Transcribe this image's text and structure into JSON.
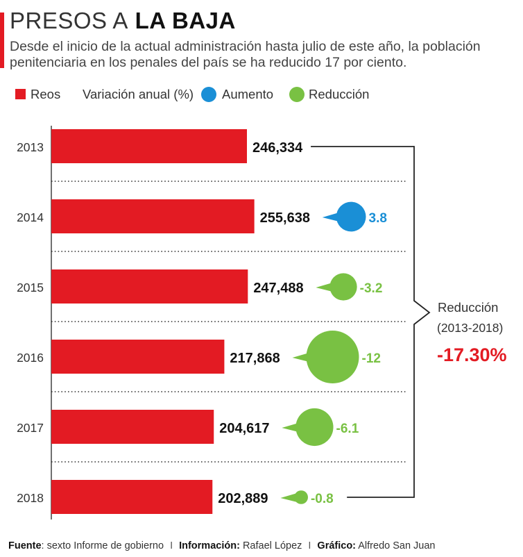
{
  "header": {
    "title_light": "PRESOS A",
    "title_bold": "LA BAJA",
    "subtitle": "Desde el inicio de la actual administración hasta julio de este año, la población penitenciaria en los penales del país se ha reducido 17 por ciento."
  },
  "legend": {
    "reos": "Reos",
    "variacion": "Variación anual (%)",
    "aumento": "Aumento",
    "reduccion": "Reducción"
  },
  "colors": {
    "bar": "#e31b23",
    "aumento": "#1a8fd6",
    "reduccion": "#79c143",
    "reduction_total": "#e31b23"
  },
  "chart_data": {
    "type": "bar",
    "orientation": "horizontal",
    "categories": [
      "2013",
      "2014",
      "2015",
      "2016",
      "2017",
      "2018"
    ],
    "series": [
      {
        "name": "Reos",
        "values": [
          246334,
          255638,
          247488,
          217868,
          204617,
          202889
        ]
      }
    ],
    "value_labels": [
      "246,334",
      "255,638",
      "247,488",
      "217,868",
      "204,617",
      "202,889"
    ],
    "annual_change": [
      {
        "year": "2014",
        "value": 3.8,
        "label": "3.8",
        "kind": "aumento"
      },
      {
        "year": "2015",
        "value": -3.2,
        "label": "-3.2",
        "kind": "reduccion"
      },
      {
        "year": "2016",
        "value": -12,
        "label": "-12",
        "kind": "reduccion"
      },
      {
        "year": "2017",
        "value": -6.1,
        "label": "-6.1",
        "kind": "reduccion"
      },
      {
        "year": "2018",
        "value": -0.8,
        "label": "-0.8",
        "kind": "reduccion"
      }
    ],
    "reduction_summary": {
      "label": "Reducción",
      "period": "(2013-2018)",
      "value": "-17.30%"
    }
  },
  "footer": {
    "fuente_label": "Fuente",
    "fuente_text": ": sexto Informe de gobierno",
    "informacion_label": "Información:",
    "informacion_text": "Rafael López",
    "grafico_label": "Gráfico:",
    "grafico_text": "Alfredo San Juan",
    "separator": "I"
  }
}
